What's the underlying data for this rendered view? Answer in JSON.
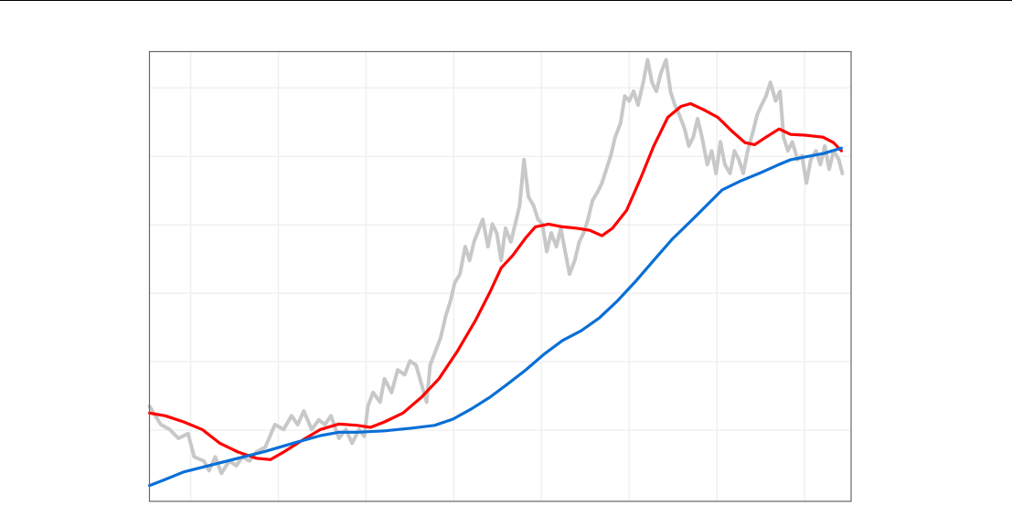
{
  "chart_data": {
    "type": "line",
    "title": "",
    "xlabel": "",
    "ylabel": "",
    "xlim": [
      5.3,
      85.3
    ],
    "ylim": [
      -0.4,
      65.3
    ],
    "grid": true,
    "x_gridlines": [
      10,
      20,
      30,
      40,
      50,
      60,
      70,
      80
    ],
    "y_gridlines": [
      10,
      20,
      30,
      40,
      50,
      60
    ],
    "legend": "none",
    "series": [
      {
        "color": "#c8c8c8",
        "points": [
          [
            5.3,
            13.5
          ],
          [
            6.6,
            10.8
          ],
          [
            7.6,
            10.1
          ],
          [
            8.6,
            8.8
          ],
          [
            9.7,
            9.5
          ],
          [
            10.4,
            6.1
          ],
          [
            11.5,
            5.5
          ],
          [
            12.1,
            4.1
          ],
          [
            12.8,
            6.1
          ],
          [
            13.5,
            3.7
          ],
          [
            14.4,
            5.5
          ],
          [
            15.2,
            4.8
          ],
          [
            15.9,
            6.1
          ],
          [
            16.7,
            5.5
          ],
          [
            17.5,
            6.8
          ],
          [
            18.5,
            7.5
          ],
          [
            19.6,
            10.8
          ],
          [
            20.6,
            10.1
          ],
          [
            21.5,
            12.1
          ],
          [
            22.2,
            10.8
          ],
          [
            22.9,
            12.8
          ],
          [
            23.8,
            10.1
          ],
          [
            24.6,
            11.5
          ],
          [
            25.3,
            10.8
          ],
          [
            26.0,
            12.1
          ],
          [
            26.9,
            8.8
          ],
          [
            27.7,
            10.1
          ],
          [
            28.4,
            8.1
          ],
          [
            29.2,
            10.1
          ],
          [
            29.8,
            9.1
          ],
          [
            30.2,
            13.5
          ],
          [
            30.8,
            15.5
          ],
          [
            31.6,
            14.1
          ],
          [
            32.1,
            17.5
          ],
          [
            32.9,
            15.5
          ],
          [
            33.6,
            18.8
          ],
          [
            34.4,
            18.1
          ],
          [
            35.0,
            20.1
          ],
          [
            35.7,
            19.5
          ],
          [
            36.3,
            16.8
          ],
          [
            36.9,
            14.1
          ],
          [
            37.3,
            19.5
          ],
          [
            37.9,
            21.5
          ],
          [
            38.5,
            23.5
          ],
          [
            39.1,
            26.8
          ],
          [
            39.6,
            28.8
          ],
          [
            40.1,
            31.5
          ],
          [
            40.7,
            32.8
          ],
          [
            41.3,
            36.8
          ],
          [
            41.8,
            34.8
          ],
          [
            42.3,
            37.5
          ],
          [
            42.7,
            38.8
          ],
          [
            43.3,
            40.8
          ],
          [
            43.9,
            36.8
          ],
          [
            44.4,
            40.1
          ],
          [
            44.9,
            38.8
          ],
          [
            45.4,
            34.8
          ],
          [
            45.9,
            39.5
          ],
          [
            46.5,
            37.5
          ],
          [
            47.0,
            40.1
          ],
          [
            47.5,
            42.8
          ],
          [
            48.0,
            49.5
          ],
          [
            48.5,
            44.1
          ],
          [
            49.1,
            42.8
          ],
          [
            49.6,
            40.8
          ],
          [
            50.1,
            40.1
          ],
          [
            50.6,
            36.1
          ],
          [
            51.1,
            38.8
          ],
          [
            51.7,
            36.8
          ],
          [
            52.2,
            39.5
          ],
          [
            52.7,
            36.1
          ],
          [
            53.2,
            32.8
          ],
          [
            53.8,
            34.8
          ],
          [
            54.3,
            37.5
          ],
          [
            54.8,
            38.8
          ],
          [
            55.3,
            40.8
          ],
          [
            55.8,
            43.5
          ],
          [
            56.4,
            44.8
          ],
          [
            56.9,
            46.1
          ],
          [
            57.4,
            48.1
          ],
          [
            57.9,
            50.1
          ],
          [
            58.4,
            52.8
          ],
          [
            59.0,
            54.8
          ],
          [
            59.5,
            58.8
          ],
          [
            60.0,
            58.1
          ],
          [
            60.5,
            59.5
          ],
          [
            61.0,
            57.5
          ],
          [
            61.6,
            60.8
          ],
          [
            62.1,
            64.1
          ],
          [
            62.6,
            60.8
          ],
          [
            63.1,
            59.5
          ],
          [
            63.6,
            62.1
          ],
          [
            64.2,
            64.1
          ],
          [
            64.7,
            59.5
          ],
          [
            65.2,
            57.5
          ],
          [
            65.7,
            56.1
          ],
          [
            66.3,
            54.1
          ],
          [
            66.8,
            51.5
          ],
          [
            67.3,
            52.8
          ],
          [
            67.8,
            55.5
          ],
          [
            68.3,
            52.8
          ],
          [
            68.9,
            48.8
          ],
          [
            69.4,
            50.8
          ],
          [
            69.9,
            47.5
          ],
          [
            70.4,
            52.1
          ],
          [
            70.9,
            48.8
          ],
          [
            71.5,
            47.5
          ],
          [
            72.0,
            50.8
          ],
          [
            72.5,
            49.5
          ],
          [
            73.0,
            47.5
          ],
          [
            73.5,
            50.8
          ],
          [
            74.1,
            53.5
          ],
          [
            74.6,
            56.1
          ],
          [
            75.1,
            57.5
          ],
          [
            75.6,
            58.8
          ],
          [
            76.1,
            60.8
          ],
          [
            76.7,
            58.1
          ],
          [
            77.2,
            59.5
          ],
          [
            77.6,
            52.8
          ],
          [
            78.1,
            50.8
          ],
          [
            78.6,
            52.1
          ],
          [
            79.2,
            49.5
          ],
          [
            79.7,
            50.1
          ],
          [
            80.2,
            46.1
          ],
          [
            80.7,
            49.5
          ],
          [
            81.3,
            50.8
          ],
          [
            81.8,
            48.8
          ],
          [
            82.3,
            51.5
          ],
          [
            82.8,
            48.1
          ],
          [
            83.3,
            50.8
          ],
          [
            83.9,
            49.5
          ],
          [
            84.3,
            47.5
          ]
        ]
      },
      {
        "color": "#ff0000",
        "points": [
          [
            5.3,
            12.5
          ],
          [
            7.1,
            12.1
          ],
          [
            9.2,
            11.2
          ],
          [
            11.3,
            10.1
          ],
          [
            13.3,
            8.1
          ],
          [
            15.4,
            6.8
          ],
          [
            17.5,
            5.9
          ],
          [
            19.1,
            5.7
          ],
          [
            20.6,
            6.8
          ],
          [
            22.7,
            8.5
          ],
          [
            24.8,
            10.1
          ],
          [
            26.9,
            10.9
          ],
          [
            29.0,
            10.7
          ],
          [
            30.5,
            10.4
          ],
          [
            32.1,
            11.2
          ],
          [
            34.2,
            12.5
          ],
          [
            36.3,
            14.8
          ],
          [
            38.3,
            17.5
          ],
          [
            40.4,
            21.5
          ],
          [
            42.5,
            26.1
          ],
          [
            44.1,
            30.1
          ],
          [
            45.4,
            33.7
          ],
          [
            46.7,
            35.5
          ],
          [
            48.2,
            38.1
          ],
          [
            49.3,
            39.7
          ],
          [
            50.8,
            40.1
          ],
          [
            52.4,
            39.7
          ],
          [
            54.0,
            39.5
          ],
          [
            55.5,
            39.2
          ],
          [
            56.9,
            38.4
          ],
          [
            58.1,
            39.5
          ],
          [
            59.7,
            42.1
          ],
          [
            61.3,
            46.8
          ],
          [
            62.8,
            51.5
          ],
          [
            64.4,
            55.7
          ],
          [
            65.9,
            57.3
          ],
          [
            67.0,
            57.7
          ],
          [
            68.5,
            56.8
          ],
          [
            70.1,
            55.7
          ],
          [
            71.7,
            53.7
          ],
          [
            73.2,
            52.0
          ],
          [
            74.3,
            51.7
          ],
          [
            75.6,
            52.8
          ],
          [
            77.1,
            54.0
          ],
          [
            78.4,
            53.2
          ],
          [
            80.0,
            53.1
          ],
          [
            82.1,
            52.8
          ],
          [
            83.3,
            52.0
          ],
          [
            84.2,
            50.8
          ]
        ]
      },
      {
        "color": "#0a6fd6",
        "points": [
          [
            5.3,
            1.9
          ],
          [
            7.1,
            2.8
          ],
          [
            9.2,
            3.9
          ],
          [
            12.3,
            4.9
          ],
          [
            15.4,
            5.9
          ],
          [
            18.5,
            6.9
          ],
          [
            21.7,
            8.1
          ],
          [
            24.8,
            9.2
          ],
          [
            26.9,
            9.7
          ],
          [
            29.0,
            9.7
          ],
          [
            32.1,
            9.9
          ],
          [
            35.2,
            10.3
          ],
          [
            37.8,
            10.7
          ],
          [
            39.9,
            11.6
          ],
          [
            42.0,
            13.1
          ],
          [
            44.1,
            14.8
          ],
          [
            46.1,
            16.7
          ],
          [
            48.2,
            18.8
          ],
          [
            50.3,
            21.1
          ],
          [
            52.4,
            23.1
          ],
          [
            54.5,
            24.5
          ],
          [
            56.6,
            26.4
          ],
          [
            58.6,
            28.8
          ],
          [
            60.7,
            31.7
          ],
          [
            62.8,
            34.8
          ],
          [
            64.9,
            37.9
          ],
          [
            67.0,
            40.5
          ],
          [
            69.1,
            43.2
          ],
          [
            70.6,
            45.1
          ],
          [
            72.7,
            46.4
          ],
          [
            74.8,
            47.5
          ],
          [
            76.9,
            48.7
          ],
          [
            78.4,
            49.5
          ],
          [
            80.0,
            49.9
          ],
          [
            82.1,
            50.4
          ],
          [
            84.2,
            51.2
          ]
        ]
      }
    ]
  }
}
